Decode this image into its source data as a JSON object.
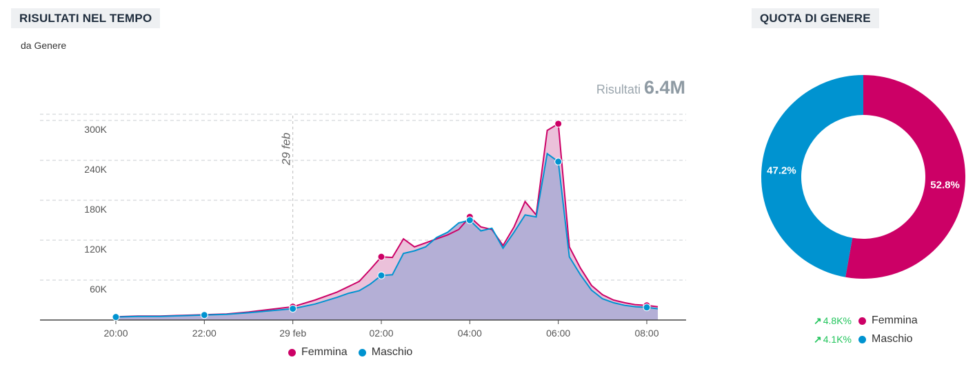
{
  "left_panel": {
    "title": "RISULTATI NEL TEMPO",
    "subtitle": "da Genere",
    "total_label": "Risultati",
    "total_value": "6.4M"
  },
  "right_panel": {
    "title": "QUOTA DI GENERE",
    "items": [
      {
        "name": "Femmina",
        "delta": "4.8K%",
        "color": "#cc0066"
      },
      {
        "name": "Maschio",
        "delta": "4.1K%",
        "color": "#0093d0"
      }
    ]
  },
  "legend": [
    {
      "name": "Femmina",
      "color": "#cc0066"
    },
    {
      "name": "Maschio",
      "color": "#0093d0"
    }
  ],
  "chart_data": [
    {
      "type": "area",
      "title": "RISULTATI NEL TEMPO",
      "subtitle": "da Genere",
      "x": [
        "20:00",
        "20:30",
        "21:00",
        "21:30",
        "22:00",
        "22:30",
        "23:00",
        "23:30",
        "29 feb",
        "00:30",
        "01:00",
        "01:15",
        "01:30",
        "01:45",
        "02:00",
        "02:15",
        "02:30",
        "02:45",
        "03:00",
        "03:15",
        "03:30",
        "03:45",
        "04:00",
        "04:15",
        "04:30",
        "04:45",
        "05:00",
        "05:15",
        "05:30",
        "05:45",
        "06:00",
        "06:15",
        "06:30",
        "06:45",
        "07:00",
        "07:15",
        "07:30",
        "07:45",
        "08:00",
        "08:15"
      ],
      "x_tick_labels": [
        "20:00",
        "22:00",
        "29 feb",
        "02:00",
        "04:00",
        "06:00",
        "08:00"
      ],
      "annotation": "29 feb",
      "y_ticks": [
        60000,
        120000,
        180000,
        240000,
        300000
      ],
      "y_tick_labels": [
        "60K",
        "120K",
        "180K",
        "240K",
        "300K"
      ],
      "ylim": [
        0,
        320000
      ],
      "grid": true,
      "legend_position": "bottom-center",
      "series": [
        {
          "name": "Femmina",
          "color": "#cc0066",
          "values": [
            5000,
            6000,
            6000,
            7000,
            8000,
            9000,
            12000,
            16000,
            20000,
            30000,
            42000,
            50000,
            58000,
            76000,
            95000,
            94000,
            122000,
            110000,
            116000,
            122000,
            128000,
            136000,
            155000,
            140000,
            136000,
            112000,
            140000,
            178000,
            158000,
            285000,
            295000,
            110000,
            78000,
            52000,
            38000,
            30000,
            26000,
            23000,
            22000,
            20000
          ]
        },
        {
          "name": "Maschio",
          "color": "#0093d0",
          "values": [
            4500,
            5500,
            5500,
            6500,
            7500,
            8500,
            11000,
            14000,
            17000,
            24000,
            34000,
            40000,
            44000,
            54000,
            67000,
            68000,
            100000,
            104000,
            110000,
            124000,
            132000,
            146000,
            150000,
            134000,
            138000,
            108000,
            132000,
            158000,
            155000,
            250000,
            238000,
            95000,
            68000,
            45000,
            32000,
            26000,
            22000,
            20000,
            19000,
            17000
          ]
        }
      ]
    },
    {
      "type": "pie",
      "title": "QUOTA DI GENERE",
      "labels": [
        "Femmina",
        "Maschio"
      ],
      "values": [
        52.8,
        47.2
      ],
      "value_labels": [
        "52.8%",
        "47.2%"
      ],
      "colors": [
        "#cc0066",
        "#0093d0"
      ]
    }
  ]
}
